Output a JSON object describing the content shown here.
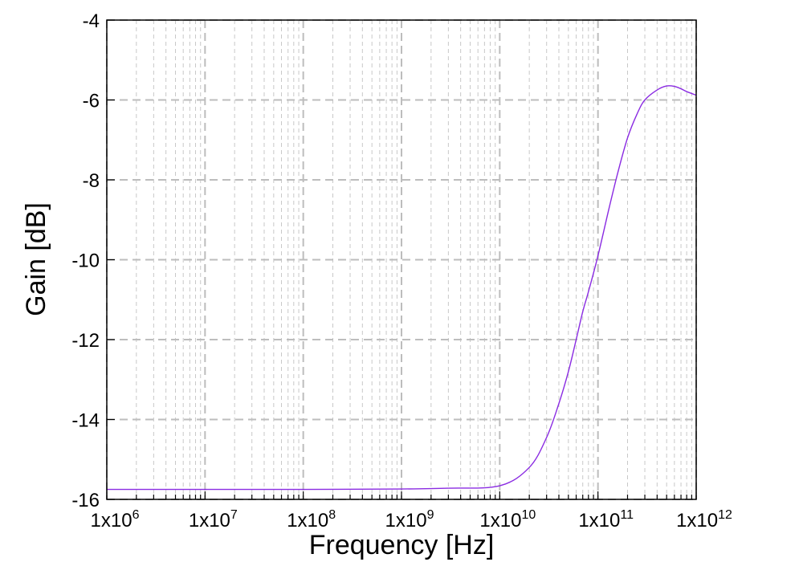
{
  "chart_data": {
    "type": "line",
    "xlabel": "Frequency [Hz]",
    "ylabel": "Gain [dB]",
    "xscale": "log",
    "xlim": [
      1000000,
      1000000000000
    ],
    "ylim": [
      -16,
      -4
    ],
    "grid": true,
    "legend": "none",
    "x_ticks": [
      {
        "base": "1x10",
        "exp": "6"
      },
      {
        "base": "1x10",
        "exp": "7"
      },
      {
        "base": "1x10",
        "exp": "8"
      },
      {
        "base": "1x10",
        "exp": "9"
      },
      {
        "base": "1x10",
        "exp": "10"
      },
      {
        "base": "1x10",
        "exp": "11"
      },
      {
        "base": "1x10",
        "exp": "12"
      }
    ],
    "y_ticks": [
      "-4",
      "-6",
      "-8",
      "-10",
      "-12",
      "-14",
      "-16"
    ],
    "series": [
      {
        "color": "#8a2be2",
        "x": [
          1000000.0,
          10000000.0,
          100000000.0,
          1000000000.0,
          3000000000.0,
          10000000000.0,
          20000000000.0,
          30000000000.0,
          40000000000.0,
          50000000000.0,
          60000000000.0,
          70000000000.0,
          80000000000.0,
          100000000000.0,
          130000000000.0,
          160000000000.0,
          200000000000.0,
          250000000000.0,
          300000000000.0,
          400000000000.0,
          500000000000.0,
          600000000000.0,
          700000000000.0,
          800000000000.0,
          1000000000000.0
        ],
        "y": [
          -15.75,
          -15.75,
          -15.75,
          -15.74,
          -15.72,
          -15.66,
          -15.2,
          -14.45,
          -13.6,
          -12.8,
          -12.0,
          -11.3,
          -10.8,
          -9.9,
          -8.7,
          -7.8,
          -6.95,
          -6.35,
          -6.0,
          -5.75,
          -5.65,
          -5.66,
          -5.72,
          -5.79,
          -5.88
        ]
      }
    ]
  }
}
